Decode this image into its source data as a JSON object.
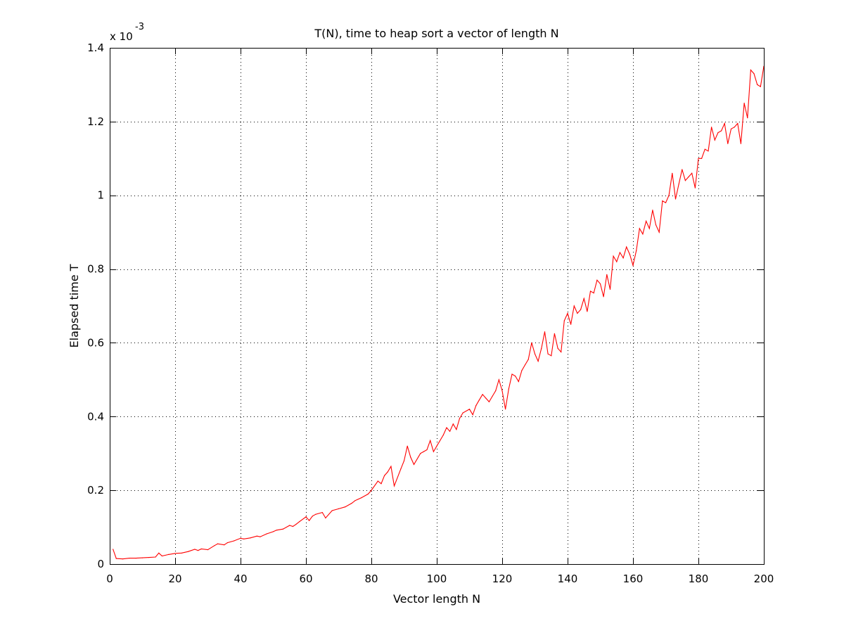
{
  "chart_data": {
    "type": "line",
    "title": "T(N), time to heap sort a vector of length N",
    "xlabel": "Vector length N",
    "ylabel": "Elapsed time T",
    "y_multiplier_label": "x 10",
    "y_multiplier_exponent": "-3",
    "xlim": [
      0,
      200
    ],
    "ylim": [
      0,
      0.0014
    ],
    "xticks": [
      0,
      20,
      40,
      60,
      80,
      100,
      120,
      140,
      160,
      180,
      200
    ],
    "xtick_labels": [
      "0",
      "20",
      "40",
      "60",
      "80",
      "100",
      "120",
      "140",
      "160",
      "180",
      "200"
    ],
    "yticks": [
      0,
      0.0002,
      0.0004,
      0.0006,
      0.0008,
      0.001,
      0.0012,
      0.0014
    ],
    "ytick_labels": [
      "0",
      "0.2",
      "0.4",
      "0.6",
      "0.8",
      "1",
      "1.2",
      "1.4"
    ],
    "grid": true,
    "series": [
      {
        "color": "#ff0000",
        "x": [
          1,
          2,
          4,
          6,
          8,
          10,
          12,
          14,
          15,
          16,
          18,
          20,
          22,
          24,
          26,
          27,
          28,
          30,
          32,
          33,
          35,
          36,
          38,
          40,
          41,
          43,
          45,
          46,
          48,
          50,
          51,
          53,
          55,
          56,
          57,
          58,
          60,
          61,
          62,
          63,
          65,
          66,
          68,
          70,
          72,
          74,
          75,
          77,
          79,
          80,
          82,
          83,
          84,
          85,
          86,
          87,
          89,
          90,
          91,
          92,
          93,
          95,
          96,
          97,
          98,
          99,
          100,
          102,
          103,
          104,
          105,
          106,
          107,
          108,
          110,
          111,
          112,
          113,
          114,
          115,
          116,
          117,
          118,
          119,
          120,
          121,
          122,
          123,
          124,
          125,
          126,
          127,
          128,
          129,
          130,
          131,
          132,
          133,
          134,
          135,
          136,
          137,
          138,
          139,
          140,
          141,
          142,
          143,
          144,
          145,
          146,
          147,
          148,
          149,
          150,
          151,
          152,
          153,
          154,
          155,
          156,
          157,
          158,
          159,
          160,
          161,
          162,
          163,
          164,
          165,
          166,
          167,
          168,
          169,
          170,
          171,
          172,
          173,
          174,
          175,
          176,
          177,
          178,
          179,
          180,
          181,
          182,
          183,
          184,
          185,
          186,
          187,
          188,
          189,
          190,
          191,
          192,
          193,
          194,
          195,
          196,
          197,
          198,
          199,
          200
        ],
        "y": [
          4e-05,
          1.5e-05,
          1.4e-05,
          1.6e-05,
          1.6e-05,
          1.7e-05,
          1.8e-05,
          1.9e-05,
          3e-05,
          2.2e-05,
          2.6e-05,
          2.9e-05,
          3e-05,
          3.4e-05,
          4e-05,
          3.7e-05,
          4.1e-05,
          3.9e-05,
          5e-05,
          5.5e-05,
          5.2e-05,
          5.8e-05,
          6.3e-05,
          7e-05,
          6.8e-05,
          7.1e-05,
          7.6e-05,
          7.4e-05,
          8.2e-05,
          8.8e-05,
          9.2e-05,
          9.5e-05,
          0.000105,
          0.000102,
          0.000108,
          0.000115,
          0.000128,
          0.000118,
          0.00013,
          0.000135,
          0.00014,
          0.000125,
          0.000145,
          0.00015,
          0.000155,
          0.000165,
          0.000172,
          0.00018,
          0.00019,
          0.0002,
          0.000225,
          0.000218,
          0.00024,
          0.00025,
          0.000265,
          0.000212,
          0.000258,
          0.00028,
          0.00032,
          0.00029,
          0.00027,
          0.0003,
          0.000305,
          0.00031,
          0.000335,
          0.000305,
          0.00032,
          0.00035,
          0.00037,
          0.00036,
          0.00038,
          0.000365,
          0.000395,
          0.00041,
          0.00042,
          0.000405,
          0.00043,
          0.000445,
          0.00046,
          0.00045,
          0.00044,
          0.000455,
          0.00047,
          0.0005,
          0.00047,
          0.00042,
          0.000475,
          0.000515,
          0.00051,
          0.000495,
          0.000525,
          0.00054,
          0.000555,
          0.0006,
          0.00057,
          0.00055,
          0.000585,
          0.00063,
          0.00057,
          0.000565,
          0.000625,
          0.000585,
          0.000575,
          0.00066,
          0.00068,
          0.00065,
          0.0007,
          0.00068,
          0.00069,
          0.00072,
          0.000685,
          0.00074,
          0.000735,
          0.00077,
          0.00076,
          0.000725,
          0.000785,
          0.000745,
          0.000835,
          0.00082,
          0.000845,
          0.00083,
          0.00086,
          0.00084,
          0.00081,
          0.00085,
          0.00091,
          0.000895,
          0.00093,
          0.00091,
          0.00096,
          0.00092,
          0.0009,
          0.000985,
          0.00098,
          0.001,
          0.00106,
          0.00099,
          0.00103,
          0.00107,
          0.00104,
          0.00105,
          0.00106,
          0.00102,
          0.0011,
          0.0011,
          0.001125,
          0.00112,
          0.001185,
          0.00115,
          0.00117,
          0.001175,
          0.001195,
          0.00114,
          0.00118,
          0.001185,
          0.001195,
          0.00114,
          0.00125,
          0.00121,
          0.00134,
          0.00133,
          0.0013,
          0.001295,
          0.00135
        ]
      }
    ]
  }
}
